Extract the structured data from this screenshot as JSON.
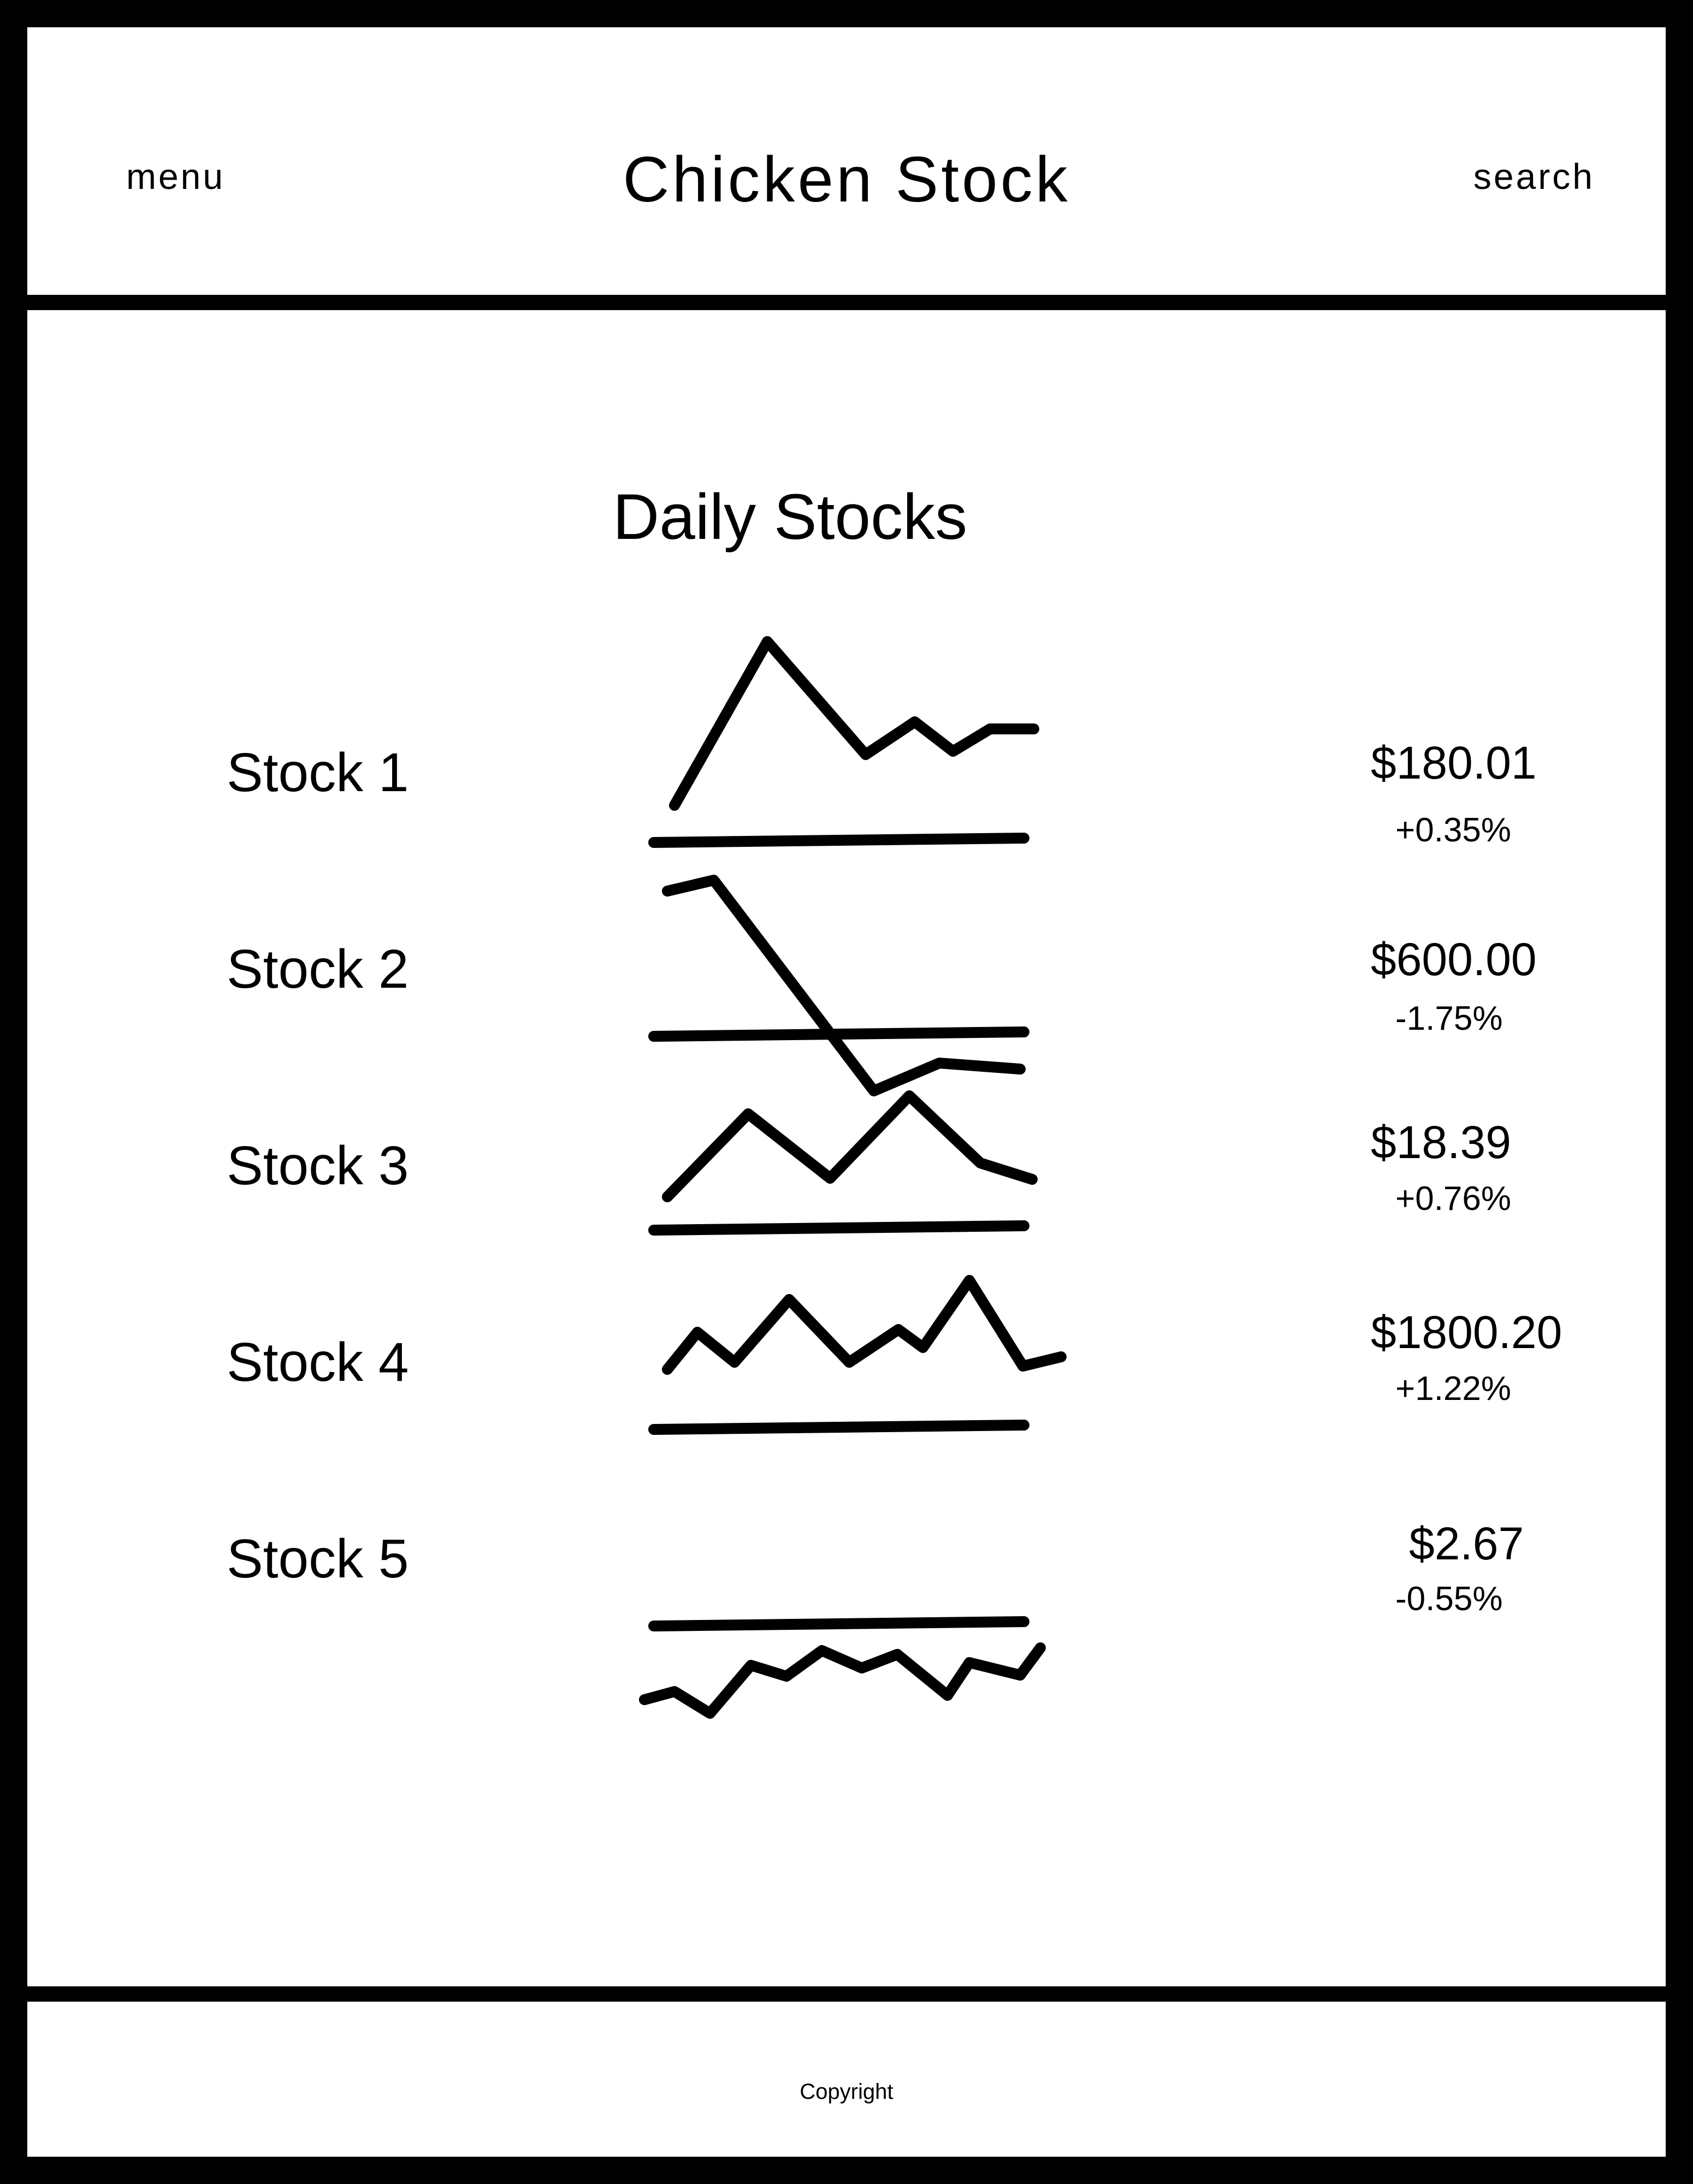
{
  "header": {
    "menu_label": "menu",
    "title": "Chicken Stock",
    "search_label": "search"
  },
  "main": {
    "section_title": "Daily Stocks",
    "stocks": [
      {
        "name": "Stock 1",
        "price": "$180.01",
        "change": "+0.35%"
      },
      {
        "name": "Stock 2",
        "price": "$600.00",
        "change": "-1.75%"
      },
      {
        "name": "Stock 3",
        "price": "$18.39",
        "change": "+0.76%"
      },
      {
        "name": "Stock 4",
        "price": "$1800.20",
        "change": "+1.22%"
      },
      {
        "name": "Stock 5",
        "price": "$2.67",
        "change": "-0.55%"
      }
    ]
  },
  "footer": {
    "copyright": "Copyright"
  },
  "colors": {
    "ink": "#000000",
    "background": "#ffffff"
  }
}
